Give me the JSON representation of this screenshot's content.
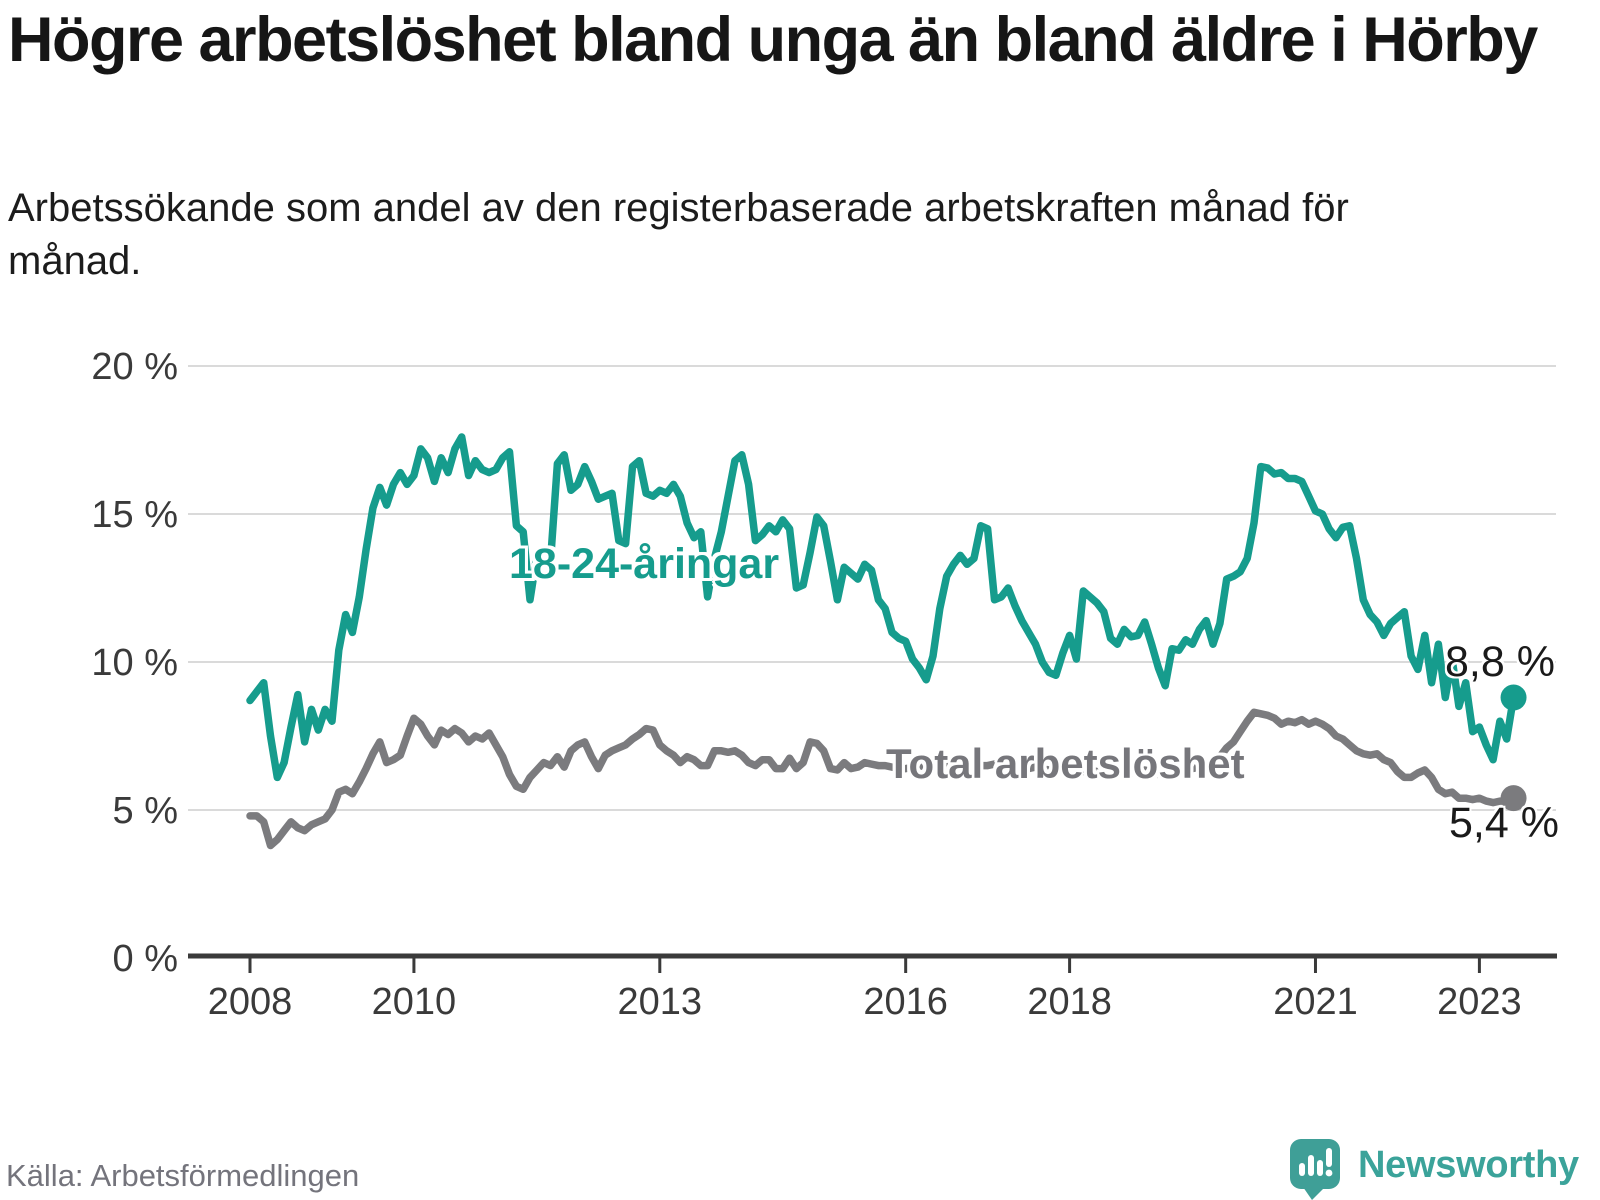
{
  "header": {
    "title": "Högre arbetslöshet bland unga än bland äldre i Hörby",
    "subtitle": "Arbetssökande som andel av den registerbaserade arbetskraften månad för månad."
  },
  "chart_data": {
    "type": "line",
    "title": "Högre arbetslöshet bland unga än bland äldre i Hörby",
    "subtitle": "Arbetssökande som andel av den registerbaserade arbetskraften månad för månad.",
    "unit": "%",
    "grid": true,
    "legend_position": "inline-labels",
    "ylim": [
      0,
      20
    ],
    "y_ticks": [
      0,
      5,
      10,
      15,
      20
    ],
    "y_tick_labels": [
      "0 %",
      "5 %",
      "10 %",
      "15 %",
      "20 %"
    ],
    "x_tick_years": [
      2008,
      2010,
      2013,
      2016,
      2018,
      2021,
      2023
    ],
    "x_tick_labels": [
      "2008",
      "2010",
      "2013",
      "2016",
      "2018",
      "2021",
      "2023"
    ],
    "x_range": {
      "start": "2008-01",
      "end": "2023-06",
      "points_per_year": 12
    },
    "series": [
      {
        "name": "18-24-åringar",
        "color": "#169c8d",
        "end_label": "8,8 %",
        "end_value": 8.8,
        "values": [
          8.7,
          9.0,
          9.3,
          7.5,
          6.1,
          6.6,
          7.8,
          8.9,
          7.3,
          8.4,
          7.7,
          8.4,
          8.0,
          10.4,
          11.6,
          11.0,
          12.2,
          13.8,
          15.2,
          15.9,
          15.3,
          16.0,
          16.4,
          16.0,
          16.3,
          17.2,
          16.9,
          16.1,
          16.9,
          16.4,
          17.2,
          17.6,
          16.3,
          16.8,
          16.5,
          16.4,
          16.5,
          16.9,
          17.1,
          14.6,
          14.4,
          12.1,
          13.6,
          13.8,
          13.4,
          16.7,
          17.0,
          15.8,
          16.0,
          16.6,
          16.1,
          15.5,
          15.6,
          15.7,
          14.1,
          14.0,
          16.6,
          16.8,
          15.7,
          15.6,
          15.8,
          15.7,
          16.0,
          15.6,
          14.7,
          14.2,
          14.4,
          12.2,
          13.5,
          14.4,
          15.6,
          16.8,
          17.0,
          16.0,
          14.1,
          14.3,
          14.6,
          14.4,
          14.8,
          14.5,
          12.5,
          12.6,
          13.7,
          14.9,
          14.6,
          13.4,
          12.1,
          13.2,
          13.0,
          12.8,
          13.3,
          13.1,
          12.1,
          11.8,
          11.0,
          10.8,
          10.7,
          10.1,
          9.8,
          9.4,
          10.2,
          11.8,
          12.9,
          13.3,
          13.6,
          13.3,
          13.5,
          14.6,
          14.5,
          12.1,
          12.2,
          12.5,
          11.9,
          11.4,
          11.0,
          10.6,
          10.0,
          9.65,
          9.55,
          10.3,
          10.9,
          10.1,
          12.4,
          12.2,
          12.0,
          11.7,
          10.8,
          10.6,
          11.1,
          10.85,
          10.9,
          11.35,
          10.6,
          9.8,
          9.2,
          10.45,
          10.4,
          10.75,
          10.6,
          11.1,
          11.4,
          10.6,
          11.3,
          12.8,
          12.9,
          13.05,
          13.5,
          14.7,
          16.6,
          16.55,
          16.35,
          16.4,
          16.2,
          16.2,
          16.1,
          15.6,
          15.1,
          15.0,
          14.5,
          14.2,
          14.55,
          14.6,
          13.5,
          12.1,
          11.6,
          11.35,
          10.9,
          11.3,
          11.5,
          11.7,
          10.2,
          9.75,
          10.9,
          9.3,
          10.6,
          8.8,
          10.1,
          8.5,
          9.3,
          7.65,
          7.8,
          7.2,
          6.7,
          8.0,
          7.4,
          8.8
        ]
      },
      {
        "name": "Total arbetslöshet",
        "color": "#7b7b7e",
        "end_label": "5,4 %",
        "end_value": 5.4,
        "values": [
          4.8,
          4.8,
          4.6,
          3.8,
          4.0,
          4.3,
          4.6,
          4.4,
          4.3,
          4.5,
          4.6,
          4.7,
          5.0,
          5.6,
          5.7,
          5.55,
          5.95,
          6.4,
          6.9,
          7.3,
          6.6,
          6.7,
          6.85,
          7.5,
          8.1,
          7.9,
          7.5,
          7.2,
          7.7,
          7.55,
          7.75,
          7.6,
          7.3,
          7.5,
          7.4,
          7.6,
          7.2,
          6.8,
          6.2,
          5.8,
          5.7,
          6.1,
          6.35,
          6.6,
          6.5,
          6.8,
          6.45,
          7.0,
          7.2,
          7.3,
          6.8,
          6.4,
          6.85,
          7.0,
          7.1,
          7.2,
          7.4,
          7.55,
          7.75,
          7.7,
          7.2,
          7.0,
          6.85,
          6.6,
          6.8,
          6.7,
          6.5,
          6.5,
          7.0,
          7.0,
          6.95,
          7.0,
          6.85,
          6.6,
          6.5,
          6.7,
          6.7,
          6.4,
          6.4,
          6.75,
          6.4,
          6.6,
          7.3,
          7.25,
          7.0,
          6.4,
          6.35,
          6.6,
          6.4,
          6.45,
          6.6,
          6.55,
          6.5,
          6.5,
          6.45,
          6.4,
          6.4,
          6.45,
          6.5,
          6.45,
          6.4,
          6.5,
          6.5,
          6.55,
          6.6,
          6.6,
          6.55,
          6.5,
          6.5,
          6.55,
          6.5,
          6.45,
          6.5,
          6.45,
          6.4,
          6.45,
          6.4,
          6.35,
          6.4,
          6.45,
          6.4,
          6.35,
          6.3,
          6.35,
          6.3,
          6.25,
          6.3,
          6.35,
          6.3,
          6.25,
          6.3,
          6.35,
          6.3,
          6.2,
          6.25,
          6.3,
          6.35,
          6.3,
          6.4,
          6.45,
          6.5,
          6.6,
          6.8,
          7.1,
          7.3,
          7.65,
          8.0,
          8.3,
          8.25,
          8.2,
          8.1,
          7.9,
          8.0,
          7.95,
          8.05,
          7.9,
          8.0,
          7.9,
          7.75,
          7.5,
          7.4,
          7.2,
          7.0,
          6.9,
          6.85,
          6.9,
          6.7,
          6.6,
          6.3,
          6.1,
          6.1,
          6.25,
          6.35,
          6.1,
          5.7,
          5.55,
          5.6,
          5.4,
          5.4,
          5.35,
          5.4,
          5.3,
          5.25,
          5.3,
          5.3,
          5.4
        ]
      }
    ],
    "style": {
      "grid_color": "#dadada",
      "axis_color": "#3a3a3a",
      "axis_text_color": "#3a3a3a",
      "line_width": 7.5,
      "end_dot_radius": 13
    }
  },
  "footer": {
    "source": "Källa: Arbetsförmedlingen",
    "brand": "Newsworthy"
  }
}
